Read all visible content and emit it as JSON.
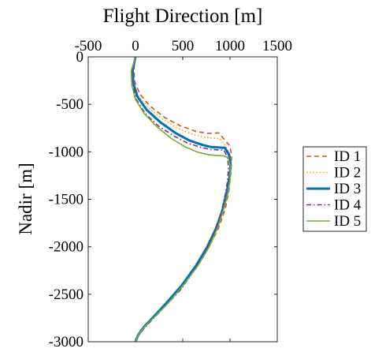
{
  "chart_data": {
    "type": "line",
    "title": "Flight Direction [m]",
    "xlabel": "",
    "ylabel": "Nadir [m]",
    "xaxis_position": "top",
    "xlim": [
      -500,
      1500
    ],
    "ylim": [
      -3000,
      0
    ],
    "xticks": [
      -500,
      0,
      500,
      1000,
      1500
    ],
    "yticks": [
      0,
      -500,
      -1000,
      -1500,
      -2000,
      -2500,
      -3000
    ],
    "grid": false,
    "legend_position": "outside-right",
    "series": [
      {
        "name": "ID 1",
        "color": "#D95319",
        "dash": "dashed",
        "x": [
          0,
          -17,
          -8,
          45,
          155,
          310,
          480,
          640,
          760,
          820,
          880,
          1000,
          1017,
          1010,
          990,
          950,
          880,
          780,
          660,
          510,
          330,
          190,
          90,
          30,
          8,
          0
        ],
        "y": [
          0,
          -130,
          -260,
          -390,
          -520,
          -640,
          -730,
          -785,
          -805,
          -805,
          -800,
          -940,
          -1050,
          -1200,
          -1400,
          -1600,
          -1800,
          -2000,
          -2200,
          -2400,
          -2600,
          -2750,
          -2850,
          -2930,
          -2980,
          -3000
        ]
      },
      {
        "name": "ID 2",
        "color": "#EDB120",
        "dash": "dotted",
        "x": [
          0,
          -26,
          -18,
          25,
          130,
          280,
          440,
          590,
          720,
          820,
          890,
          980,
          1010,
          1003,
          980,
          935,
          865,
          770,
          650,
          500,
          325,
          185,
          88,
          30,
          8,
          0
        ],
        "y": [
          0,
          -130,
          -270,
          -400,
          -530,
          -650,
          -750,
          -810,
          -845,
          -858,
          -860,
          -980,
          -1080,
          -1220,
          -1400,
          -1600,
          -1800,
          -2000,
          -2200,
          -2400,
          -2600,
          -2750,
          -2850,
          -2930,
          -2980,
          -3000
        ]
      },
      {
        "name": "ID 3",
        "color": "#0072BD",
        "dash": "solid",
        "x": [
          0,
          -30,
          -22,
          20,
          120,
          265,
          420,
          570,
          700,
          800,
          880,
          945,
          990,
          1005,
          998,
          970,
          925,
          855,
          760,
          640,
          495,
          320,
          180,
          85,
          28,
          8,
          0
        ],
        "y": [
          0,
          -140,
          -280,
          -420,
          -560,
          -690,
          -800,
          -880,
          -925,
          -950,
          -955,
          -958,
          -1030,
          -1120,
          -1250,
          -1400,
          -1600,
          -1800,
          -2000,
          -2200,
          -2400,
          -2600,
          -2750,
          -2850,
          -2930,
          -2980,
          -3000
        ]
      },
      {
        "name": "ID 4",
        "color": "#7E2F8E",
        "dash": "dashdot",
        "x": [
          0,
          -37,
          -30,
          10,
          105,
          245,
          400,
          545,
          680,
          790,
          870,
          935,
          970,
          984,
          975,
          950,
          905,
          835,
          740,
          620,
          480,
          310,
          175,
          82,
          27,
          8,
          0
        ],
        "y": [
          0,
          -150,
          -300,
          -450,
          -600,
          -730,
          -830,
          -905,
          -950,
          -975,
          -980,
          -982,
          -1050,
          -1150,
          -1300,
          -1450,
          -1650,
          -1850,
          -2050,
          -2250,
          -2450,
          -2630,
          -2770,
          -2870,
          -2940,
          -2985,
          -3000
        ]
      },
      {
        "name": "ID 5",
        "color": "#77AC30",
        "dash": "solid",
        "x": [
          0,
          -45,
          -38,
          0,
          95,
          230,
          380,
          530,
          660,
          770,
          860,
          930,
          980,
          1005,
          1000,
          975,
          935,
          870,
          780,
          660,
          510,
          340,
          190,
          90,
          30,
          8,
          0
        ],
        "y": [
          0,
          -150,
          -300,
          -450,
          -600,
          -740,
          -860,
          -950,
          -1005,
          -1030,
          -1040,
          -1042,
          -1060,
          -1150,
          -1300,
          -1450,
          -1600,
          -1800,
          -2000,
          -2200,
          -2400,
          -2600,
          -2750,
          -2850,
          -2930,
          -2980,
          -3000
        ]
      }
    ]
  }
}
